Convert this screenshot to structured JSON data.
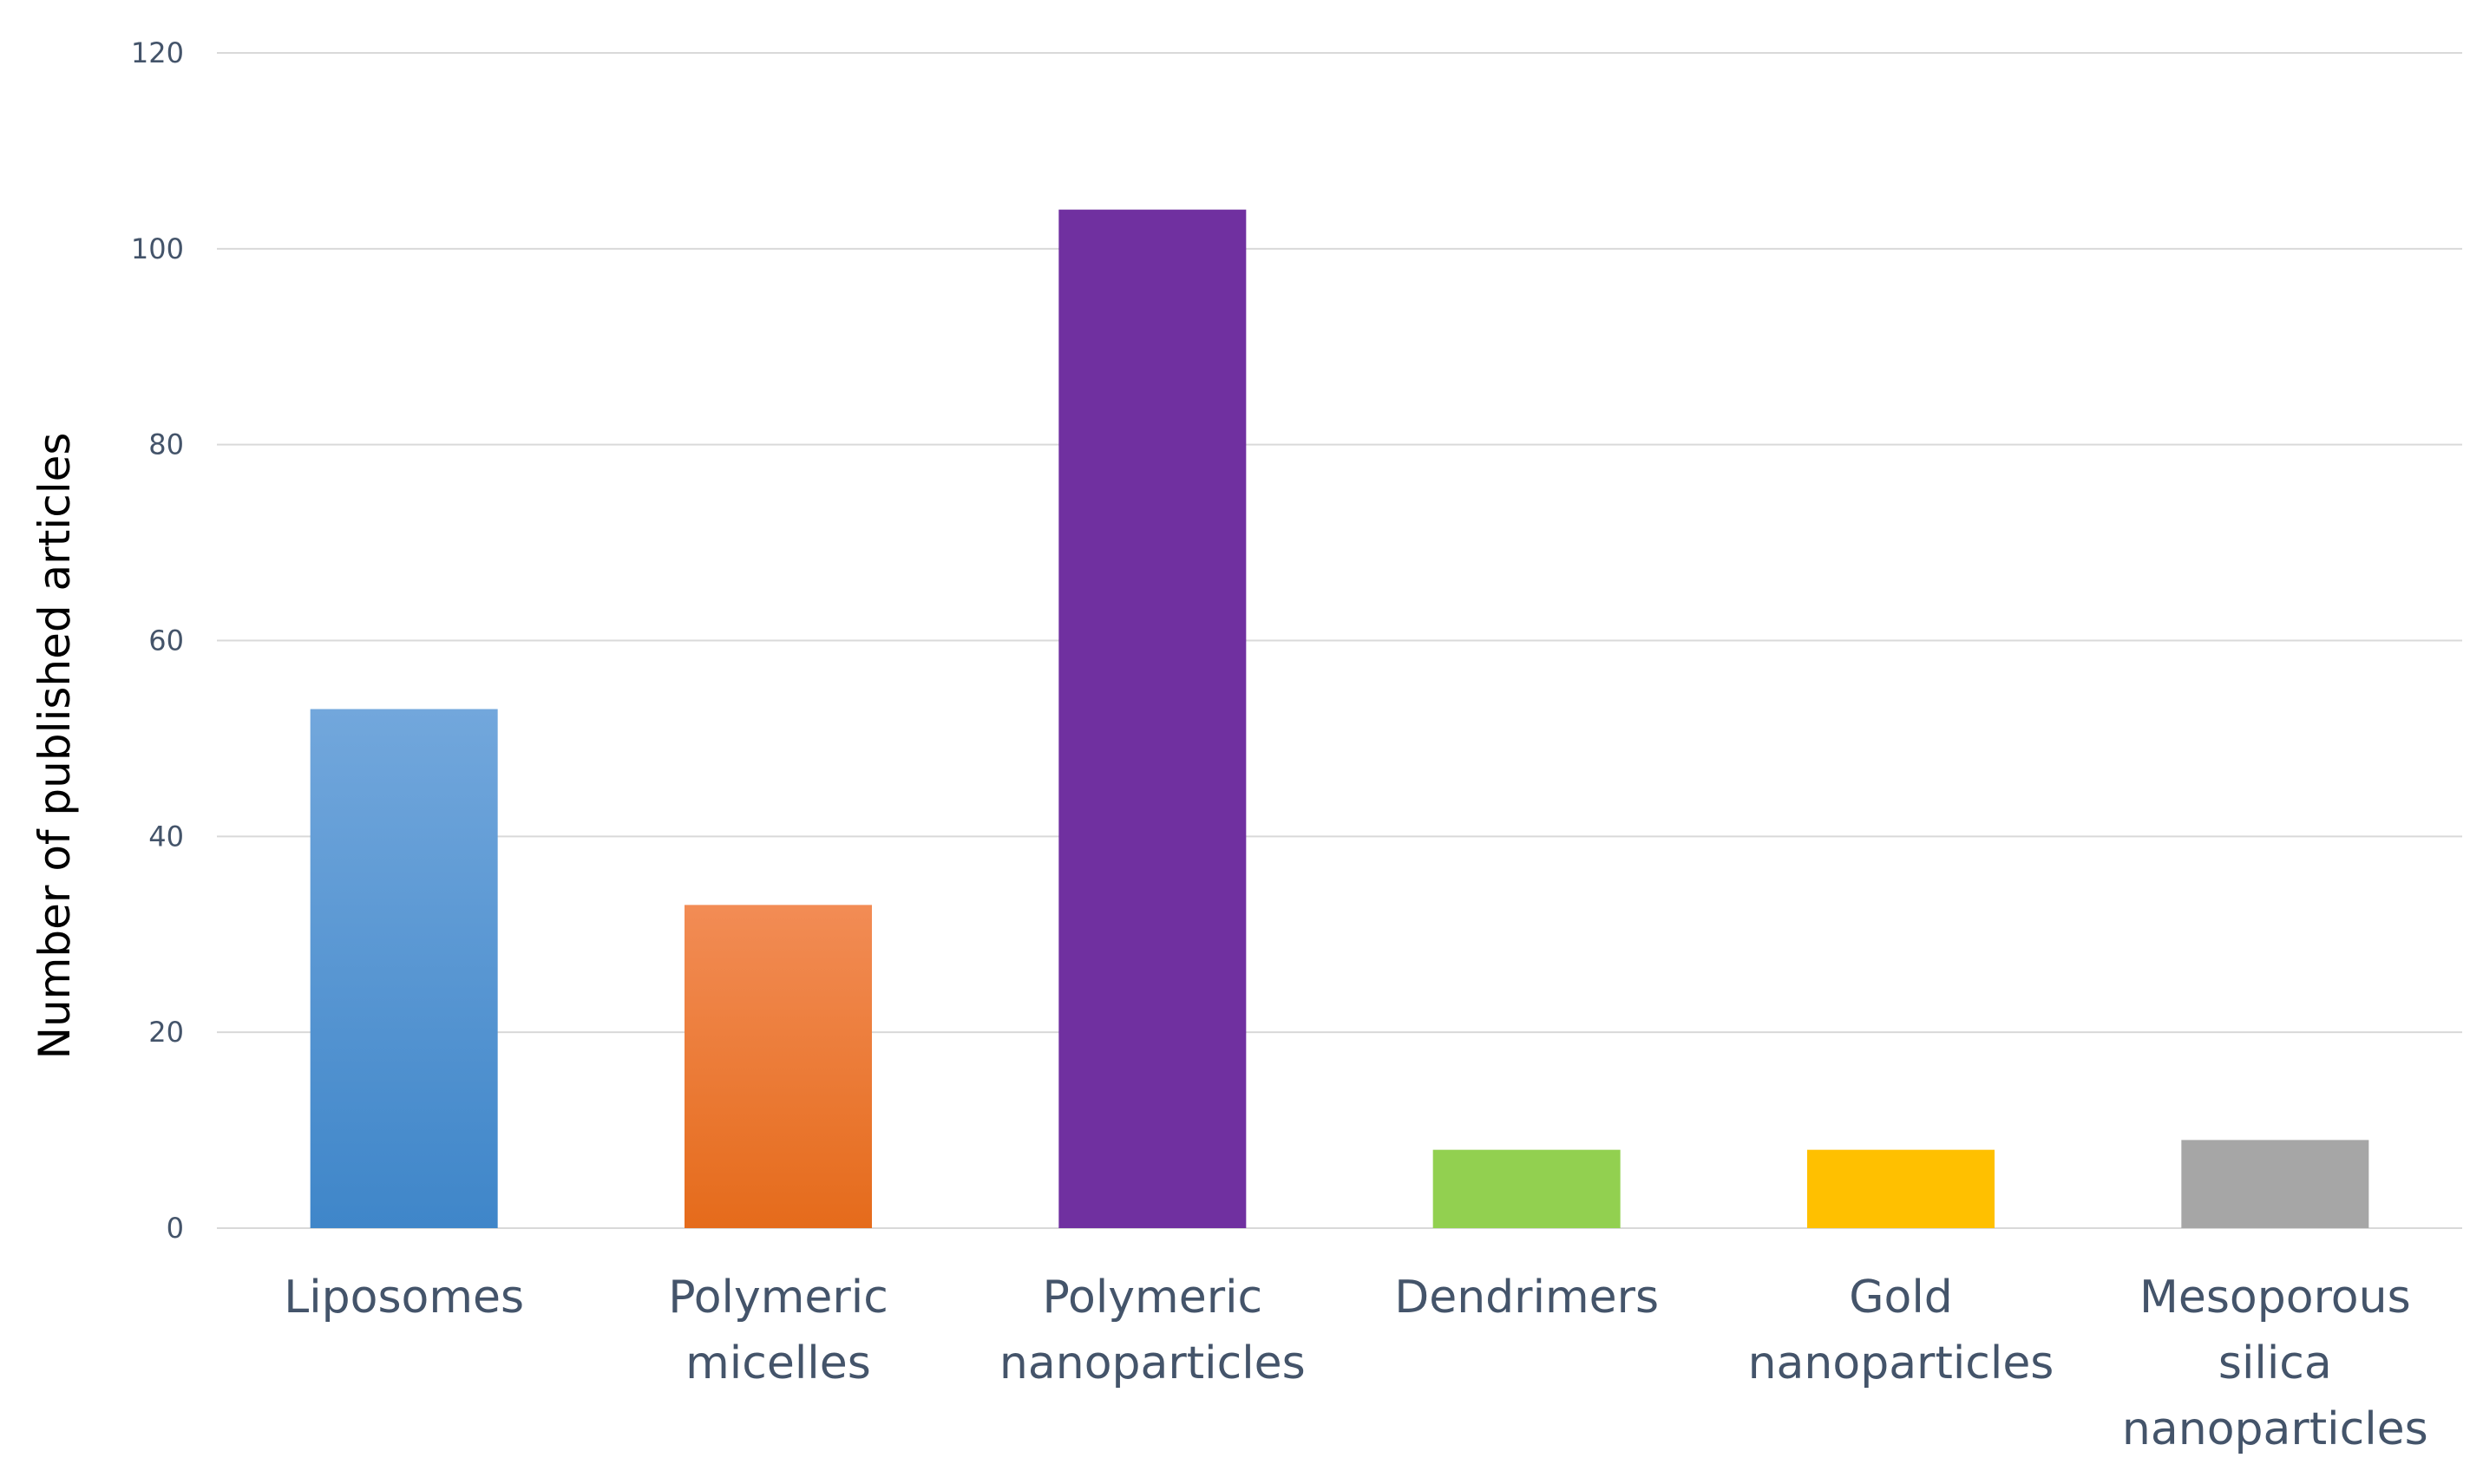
{
  "chart_data": {
    "type": "bar",
    "title": "",
    "xlabel": "",
    "ylabel": "Number of published articles",
    "ylim": [
      0,
      120
    ],
    "yticks": [
      0,
      20,
      40,
      60,
      80,
      100,
      120
    ],
    "grid": true,
    "legend": "none",
    "categories": [
      [
        "Liposomes"
      ],
      [
        "Polymeric",
        "micelles"
      ],
      [
        "Polymeric",
        "nanoparticles"
      ],
      [
        "Dendrimers"
      ],
      [
        "Gold",
        "nanoparticles"
      ],
      [
        "Mesoporous",
        "silica",
        "nanoparticles"
      ]
    ],
    "values": [
      53,
      33,
      104,
      8,
      8,
      9
    ],
    "colors": [
      {
        "top": "#72a7dc",
        "bottom": "#3f86c9"
      },
      {
        "top": "#f28c55",
        "bottom": "#e56b1b"
      },
      {
        "top": "#7030a0",
        "bottom": "#7030a0"
      },
      {
        "top": "#92d050",
        "bottom": "#92d050"
      },
      {
        "top": "#ffc000",
        "bottom": "#ffc000"
      },
      {
        "top": "#a6a6a6",
        "bottom": "#a6a6a6"
      }
    ]
  }
}
